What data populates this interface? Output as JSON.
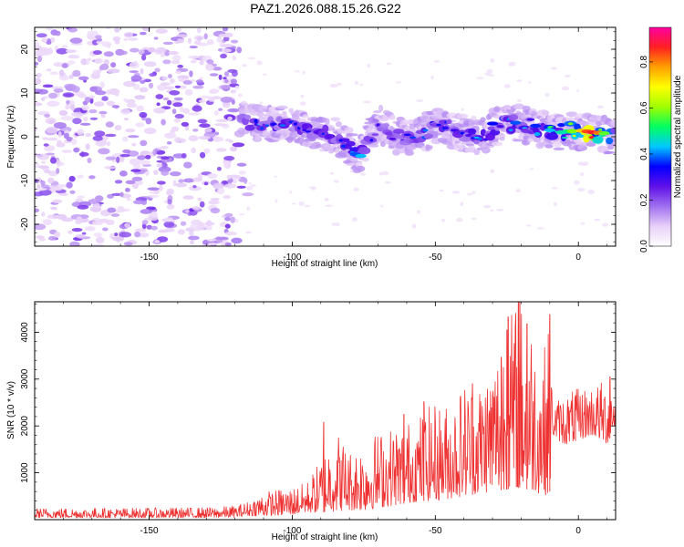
{
  "title": "PAZ1.2026.088.15.26.G22",
  "chart_data": [
    {
      "type": "heatmap",
      "name": "spectrogram",
      "xlabel": "Height of straight line (km)",
      "ylabel": "Frequency (Hz)",
      "xlim": [
        -190,
        13
      ],
      "ylim": [
        -25,
        25
      ],
      "xticks": [
        -150,
        -100,
        -50,
        0
      ],
      "xtick_labels": [
        "-150",
        "-100",
        "-50",
        "0"
      ],
      "yticks": [
        20,
        10,
        0,
        -10,
        -20
      ],
      "ytick_labels": [
        "20",
        "10",
        "0",
        "-10",
        "-20"
      ],
      "colorbar": {
        "label": "Normalized spectral amplitude",
        "range": [
          0.0,
          0.95
        ],
        "ticks": [
          0.0,
          0.2,
          0.4,
          0.6,
          0.8
        ],
        "tick_labels": [
          "0.0",
          "0.2",
          "0.4",
          "0.6",
          "0.8"
        ],
        "colormap": [
          "#ffffff",
          "#e8d0f8",
          "#a070f0",
          "#6010e8",
          "#0000ff",
          "#00c8ff",
          "#00ff60",
          "#a0ff00",
          "#ffff00",
          "#ffa000",
          "#ff2020",
          "#ff00a0"
        ]
      },
      "noise_region": {
        "x": [
          -190,
          -120
        ],
        "y": [
          -25,
          25
        ],
        "level": 0.1
      },
      "signal_band": [
        {
          "x": -118,
          "f": 4,
          "a": 0.25
        },
        {
          "x": -112,
          "f": 3,
          "a": 0.3
        },
        {
          "x": -105,
          "f": 3,
          "a": 0.3
        },
        {
          "x": -98,
          "f": 2,
          "a": 0.28
        },
        {
          "x": -90,
          "f": 1,
          "a": 0.3
        },
        {
          "x": -84,
          "f": 0,
          "a": 0.25
        },
        {
          "x": -77,
          "f": -4,
          "a": 0.35
        },
        {
          "x": -70,
          "f": 3,
          "a": 0.2
        },
        {
          "x": -63,
          "f": 0,
          "a": 0.25
        },
        {
          "x": -56,
          "f": 0,
          "a": 0.3
        },
        {
          "x": -48,
          "f": 3,
          "a": 0.25
        },
        {
          "x": -42,
          "f": 1,
          "a": 0.3
        },
        {
          "x": -33,
          "f": 0,
          "a": 0.28
        },
        {
          "x": -27,
          "f": 3,
          "a": 0.3
        },
        {
          "x": -20,
          "f": 3,
          "a": 0.3
        },
        {
          "x": -14,
          "f": 2,
          "a": 0.28
        },
        {
          "x": -8,
          "f": 1,
          "a": 0.45
        },
        {
          "x": -3,
          "f": 1.5,
          "a": 0.55
        },
        {
          "x": 3,
          "f": 1,
          "a": 0.9
        },
        {
          "x": 8,
          "f": 0.5,
          "a": 0.6
        },
        {
          "x": 12,
          "f": 0,
          "a": 0.4
        }
      ]
    },
    {
      "type": "line",
      "name": "snr",
      "xlabel": "Height of straight line (km)",
      "ylabel": "SNR (10 * v/v)",
      "xlim": [
        -190,
        13
      ],
      "ylim": [
        0,
        4650
      ],
      "xticks": [
        -150,
        -100,
        -50,
        0
      ],
      "xtick_labels": [
        "-150",
        "-100",
        "-50",
        "0"
      ],
      "yticks": [
        1000,
        2000,
        3000,
        4000
      ],
      "ytick_labels": [
        "1000",
        "2000",
        "3000",
        "4000"
      ],
      "color": "#ee3030",
      "envelope": {
        "x": [
          -190,
          -160,
          -130,
          -120,
          -115,
          -110,
          -100,
          -95,
          -90,
          -85,
          -80,
          -75,
          -70,
          -65,
          -60,
          -55,
          -50,
          -45,
          -40,
          -35,
          -30,
          -25,
          -22,
          -20,
          -18,
          -15,
          -12,
          -10,
          -9,
          -5,
          0,
          5,
          10,
          13
        ],
        "lo": [
          40,
          40,
          40,
          50,
          80,
          80,
          100,
          150,
          150,
          180,
          200,
          200,
          250,
          300,
          350,
          400,
          400,
          450,
          500,
          550,
          600,
          650,
          650,
          700,
          650,
          600,
          500,
          600,
          1800,
          1600,
          1700,
          1800,
          1600,
          2000
        ],
        "hi": [
          250,
          250,
          260,
          300,
          400,
          600,
          700,
          800,
          1300,
          2000,
          1500,
          1700,
          1900,
          2000,
          2100,
          2300,
          2500,
          2500,
          3000,
          3000,
          3500,
          4300,
          4650,
          4650,
          4600,
          4000,
          3700,
          4300,
          2500,
          2700,
          2800,
          2900,
          3000,
          2900
        ]
      },
      "spikes": [
        {
          "x": -89,
          "y": 2080
        },
        {
          "x": -61,
          "y": 2250
        },
        {
          "x": -54,
          "y": 2520
        },
        {
          "x": -37,
          "y": 2900
        },
        {
          "x": -27,
          "y": 3470
        },
        {
          "x": -25,
          "y": 4050
        },
        {
          "x": -24.5,
          "y": 4330
        },
        {
          "x": -21,
          "y": 4650
        },
        {
          "x": -20.5,
          "y": 4650
        },
        {
          "x": -18,
          "y": 4180
        },
        {
          "x": -10,
          "y": 4380
        },
        {
          "x": -1,
          "y": 2650
        },
        {
          "x": 11,
          "y": 3050
        }
      ]
    }
  ]
}
